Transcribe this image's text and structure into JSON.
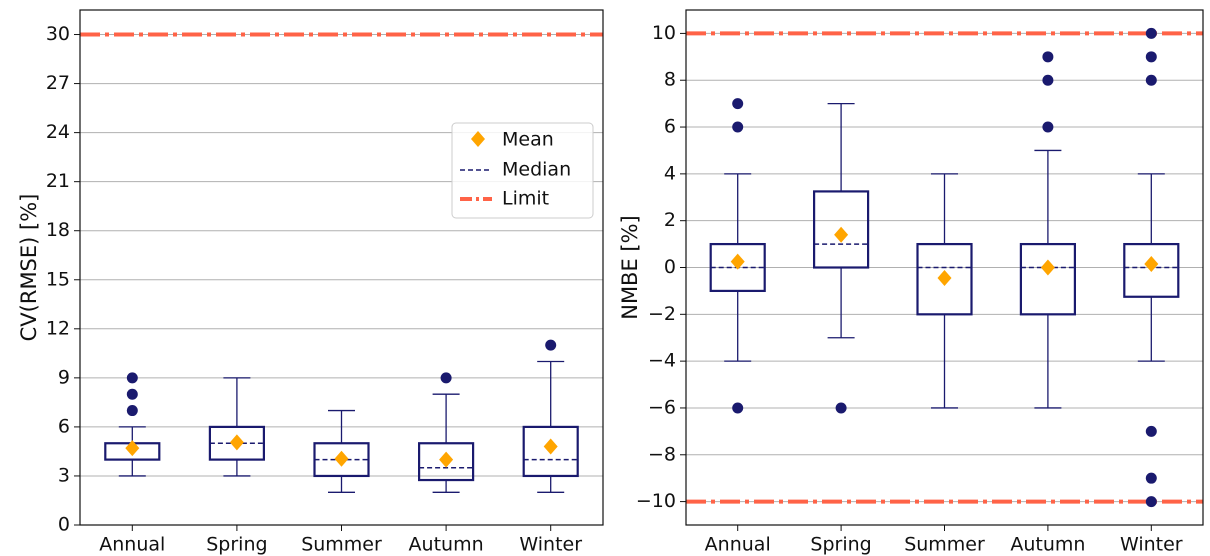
{
  "chart_data": [
    {
      "type": "box",
      "ylabel": "CV(RMSE) [%]",
      "categories": [
        "Annual",
        "Spring",
        "Summer",
        "Autumn",
        "Winter"
      ],
      "boxes": [
        {
          "low": 3,
          "q1": 4,
          "median": 4,
          "q3": 5,
          "high": 6,
          "mean": 4.7,
          "outliers": [
            7,
            8,
            9
          ]
        },
        {
          "low": 3,
          "q1": 4,
          "median": 5,
          "q3": 6,
          "high": 9,
          "mean": 5.05,
          "outliers": []
        },
        {
          "low": 2,
          "q1": 3,
          "median": 4,
          "q3": 5,
          "high": 7,
          "mean": 4.05,
          "outliers": []
        },
        {
          "low": 2,
          "q1": 2.75,
          "median": 3.5,
          "q3": 5,
          "high": 8,
          "mean": 4.0,
          "outliers": [
            9
          ]
        },
        {
          "low": 2,
          "q1": 3,
          "median": 4,
          "q3": 6,
          "high": 10,
          "mean": 4.8,
          "outliers": [
            11
          ]
        }
      ],
      "limits": [
        30
      ],
      "ylim": [
        0,
        31.5
      ],
      "yticks": [
        0,
        3,
        6,
        9,
        12,
        15,
        18,
        21,
        24,
        27,
        30
      ],
      "grid": true,
      "box_color": "#1a1a6e",
      "mean_color": "#ffa500",
      "limit_color": "#ff6347",
      "legend": {
        "corner": "upper right",
        "mean": "Mean",
        "median": "Median",
        "limit": "Limit"
      }
    },
    {
      "type": "box",
      "ylabel": "NMBE [%]",
      "categories": [
        "Annual",
        "Spring",
        "Summer",
        "Autumn",
        "Winter"
      ],
      "boxes": [
        {
          "low": -4,
          "q1": -1,
          "median": 0,
          "q3": 1,
          "high": 4,
          "mean": 0.25,
          "outliers": [
            6,
            7,
            -6
          ]
        },
        {
          "low": -3,
          "q1": 0,
          "median": 1,
          "q3": 3.25,
          "high": 7,
          "mean": 1.4,
          "outliers": [
            -6
          ]
        },
        {
          "low": -6,
          "q1": -2,
          "median": 0,
          "q3": 1,
          "high": 4,
          "mean": -0.45,
          "outliers": []
        },
        {
          "low": -6,
          "q1": -2,
          "median": 0,
          "q3": 1,
          "high": 5,
          "mean": 0,
          "outliers": [
            6,
            8,
            9
          ]
        },
        {
          "low": -4,
          "q1": -1.25,
          "median": 0,
          "q3": 1,
          "high": 4,
          "mean": 0.15,
          "outliers": [
            8,
            9,
            10,
            -7,
            -9,
            -10
          ]
        }
      ],
      "limits": [
        10,
        -10
      ],
      "ylim": [
        -11,
        11
      ],
      "yticks": [
        {
          "value": -10,
          "label": "−10"
        },
        {
          "value": -8,
          "label": "−8"
        },
        {
          "value": -6,
          "label": "−6"
        },
        {
          "value": -4,
          "label": "−4"
        },
        {
          "value": -2,
          "label": "−2"
        },
        0,
        2,
        4,
        6,
        8,
        10
      ],
      "grid": true,
      "box_color": "#1a1a6e",
      "mean_color": "#ffa500",
      "limit_color": "#ff6347"
    }
  ]
}
